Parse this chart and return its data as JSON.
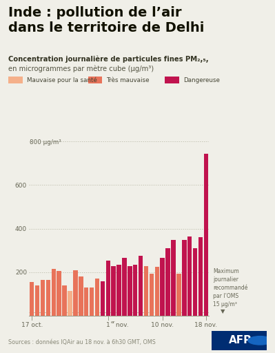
{
  "title": "Inde : pollution de l’air\ndans le territoire de Delhi",
  "subtitle_bold": "Concentration journalière de particules fines PM₂,₅,",
  "subtitle_normal": "en microgrammes par mètre cube (μg/m³)",
  "source": "Sources : données IQAir au 18 nov. à 6h30 GMT, OMS",
  "ylim": [
    0,
    850
  ],
  "yticks": [
    0,
    200,
    400,
    600,
    800
  ],
  "who_limit": 15,
  "who_annotation": "Maximum\njournalier\nrecommandé\npar l’OMS\n15 μg/m³",
  "legend_items": [
    {
      "label": "Mauvaise pour la santé",
      "color": "#F5B08A"
    },
    {
      "label": "Très mauvaise",
      "color": "#E8735A"
    },
    {
      "label": "Dangereuse",
      "color": "#C0134E"
    }
  ],
  "xtick_positions": [
    0,
    14,
    24,
    32
  ],
  "xtick_labels": [
    "17 oct.",
    "1er nov.",
    "10 nov.",
    "18 nov."
  ],
  "values": [
    155,
    140,
    165,
    165,
    215,
    205,
    140,
    115,
    210,
    180,
    130,
    130,
    170,
    160,
    255,
    230,
    235,
    265,
    230,
    235,
    275,
    230,
    195,
    225,
    265,
    310,
    350,
    195,
    350,
    365,
    310,
    360,
    745
  ],
  "colors": [
    "#E8735A",
    "#E8735A",
    "#E8735A",
    "#E8735A",
    "#E8735A",
    "#E8735A",
    "#E8735A",
    "#F5B08A",
    "#E8735A",
    "#E8735A",
    "#E8735A",
    "#E8735A",
    "#E8735A",
    "#C0134E",
    "#C0134E",
    "#C0134E",
    "#C0134E",
    "#C0134E",
    "#C0134E",
    "#C0134E",
    "#C0134E",
    "#E8735A",
    "#E8735A",
    "#E8735A",
    "#C0134E",
    "#C0134E",
    "#C0134E",
    "#E8735A",
    "#C0134E",
    "#C0134E",
    "#C0134E",
    "#C0134E",
    "#C0134E"
  ],
  "bg_color": "#F0EFE8",
  "grid_color": "#BBBBAA",
  "spine_color": "#999988"
}
